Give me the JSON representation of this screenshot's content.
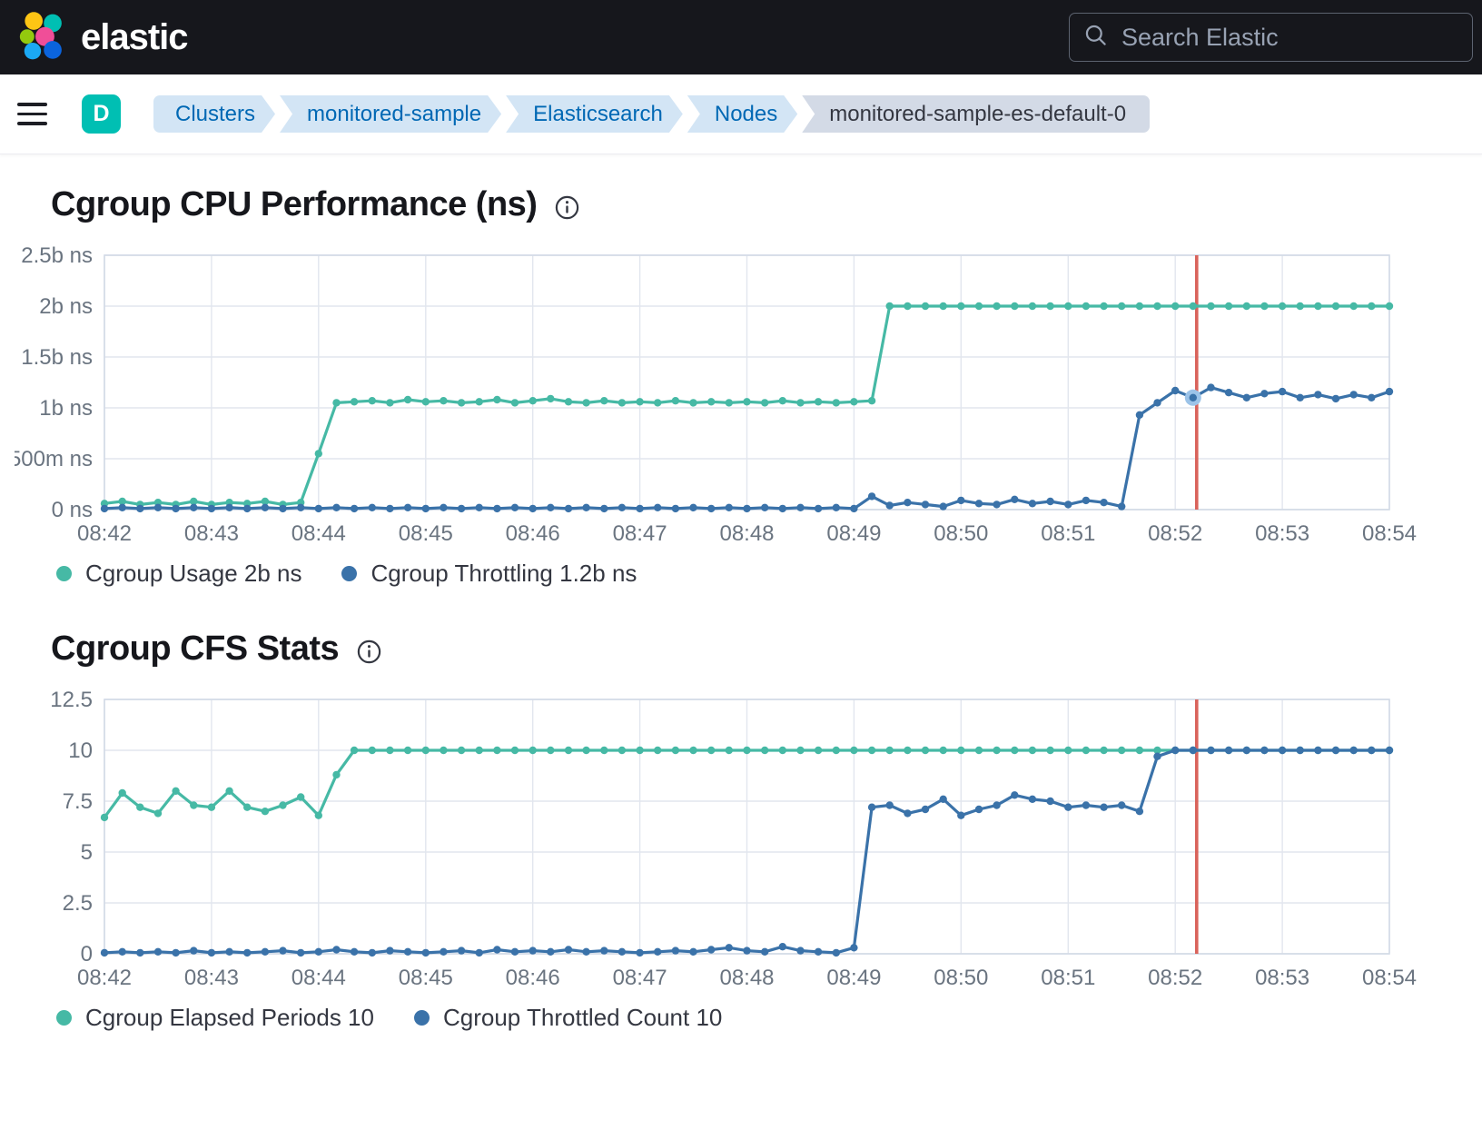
{
  "header": {
    "brand": "elastic",
    "search_placeholder": "Search Elastic"
  },
  "nav": {
    "deployment_letter": "D",
    "breadcrumbs": [
      {
        "label": "Clusters"
      },
      {
        "label": "monitored-sample"
      },
      {
        "label": "Elasticsearch"
      },
      {
        "label": "Nodes"
      },
      {
        "label": "monitored-sample-es-default-0"
      }
    ]
  },
  "colors": {
    "grid": "#e2e6ee",
    "border": "#d3dae6",
    "axis_text": "#6a7480",
    "annotation": "#d9635b",
    "teal": "#46b9a5",
    "blue": "#3a72a9"
  },
  "chart_data": [
    {
      "type": "line",
      "title": "Cgroup CPU Performance (ns)",
      "ylim": [
        0,
        2.5
      ],
      "x_max_seconds": 720,
      "x_tick_labels": [
        "08:42",
        "08:43",
        "08:44",
        "08:45",
        "08:46",
        "08:47",
        "08:48",
        "08:49",
        "08:50",
        "08:51",
        "08:52",
        "08:53",
        "08:54"
      ],
      "y_ticks": [
        {
          "v": 0,
          "label": "0 ns"
        },
        {
          "v": 0.5,
          "label": "500m ns"
        },
        {
          "v": 1,
          "label": "1b ns"
        },
        {
          "v": 1.5,
          "label": "1.5b ns"
        },
        {
          "v": 2,
          "label": "2b ns"
        },
        {
          "v": 2.5,
          "label": "2.5b ns"
        }
      ],
      "annotation": {
        "t": 612,
        "color": "#d9635b"
      },
      "series": [
        {
          "name": "Cgroup Usage",
          "legend_label": "Cgroup Usage 2b ns",
          "color": "#46b9a5",
          "t0": 0,
          "dt": 10,
          "values": [
            0.06,
            0.08,
            0.05,
            0.07,
            0.05,
            0.08,
            0.05,
            0.07,
            0.06,
            0.08,
            0.05,
            0.07,
            0.55,
            1.05,
            1.06,
            1.07,
            1.05,
            1.08,
            1.06,
            1.07,
            1.05,
            1.06,
            1.08,
            1.05,
            1.07,
            1.09,
            1.06,
            1.05,
            1.07,
            1.05,
            1.06,
            1.05,
            1.07,
            1.05,
            1.06,
            1.05,
            1.06,
            1.05,
            1.07,
            1.05,
            1.06,
            1.05,
            1.06,
            1.07,
            2,
            2,
            2,
            2,
            2,
            2,
            2,
            2,
            2,
            2,
            2,
            2,
            2,
            2,
            2,
            2,
            2,
            2,
            2,
            2,
            2,
            2,
            2,
            2,
            2,
            2,
            2,
            2,
            2
          ]
        },
        {
          "name": "Cgroup Throttling",
          "legend_label": "Cgroup Throttling 1.2b ns",
          "color": "#3a72a9",
          "t0": 0,
          "dt": 10,
          "halo_t": 610,
          "halo_color": "#9cc3e8",
          "values": [
            0.01,
            0.02,
            0.01,
            0.02,
            0.01,
            0.02,
            0.01,
            0.02,
            0.01,
            0.02,
            0.01,
            0.02,
            0.01,
            0.02,
            0.01,
            0.02,
            0.01,
            0.02,
            0.01,
            0.02,
            0.01,
            0.02,
            0.01,
            0.02,
            0.01,
            0.02,
            0.01,
            0.02,
            0.01,
            0.02,
            0.01,
            0.02,
            0.01,
            0.02,
            0.01,
            0.02,
            0.01,
            0.02,
            0.01,
            0.02,
            0.01,
            0.02,
            0.01,
            0.13,
            0.04,
            0.07,
            0.05,
            0.03,
            0.09,
            0.06,
            0.05,
            0.1,
            0.06,
            0.08,
            0.05,
            0.09,
            0.07,
            0.03,
            0.93,
            1.05,
            1.17,
            1.1,
            1.2,
            1.15,
            1.1,
            1.14,
            1.16,
            1.1,
            1.13,
            1.09,
            1.13,
            1.1,
            1.16
          ]
        }
      ]
    },
    {
      "type": "line",
      "title": "Cgroup CFS Stats",
      "ylim": [
        0,
        12.5
      ],
      "x_max_seconds": 720,
      "x_tick_labels": [
        "08:42",
        "08:43",
        "08:44",
        "08:45",
        "08:46",
        "08:47",
        "08:48",
        "08:49",
        "08:50",
        "08:51",
        "08:52",
        "08:53",
        "08:54"
      ],
      "y_ticks": [
        {
          "v": 0,
          "label": "0"
        },
        {
          "v": 2.5,
          "label": "2.5"
        },
        {
          "v": 5,
          "label": "5"
        },
        {
          "v": 7.5,
          "label": "7.5"
        },
        {
          "v": 10,
          "label": "10"
        },
        {
          "v": 12.5,
          "label": "12.5"
        }
      ],
      "annotation": {
        "t": 612,
        "color": "#d9635b"
      },
      "series": [
        {
          "name": "Cgroup Elapsed Periods",
          "legend_label": "Cgroup Elapsed Periods 10",
          "color": "#46b9a5",
          "t0": 0,
          "dt": 10,
          "values": [
            6.7,
            7.9,
            7.2,
            6.9,
            8,
            7.3,
            7.2,
            8,
            7.2,
            7,
            7.3,
            7.7,
            6.8,
            8.8,
            10,
            10,
            10,
            10,
            10,
            10,
            10,
            10,
            10,
            10,
            10,
            10,
            10,
            10,
            10,
            10,
            10,
            10,
            10,
            10,
            10,
            10,
            10,
            10,
            10,
            10,
            10,
            10,
            10,
            10,
            10,
            10,
            10,
            10,
            10,
            10,
            10,
            10,
            10,
            10,
            10,
            10,
            10,
            10,
            10,
            10,
            10,
            10,
            10,
            10,
            10,
            10,
            10,
            10,
            10,
            10,
            10,
            10,
            10
          ]
        },
        {
          "name": "Cgroup Throttled Count",
          "legend_label": "Cgroup Throttled Count 10",
          "color": "#3a72a9",
          "t0": 0,
          "dt": 10,
          "values": [
            0.05,
            0.1,
            0.05,
            0.1,
            0.05,
            0.15,
            0.05,
            0.1,
            0.05,
            0.1,
            0.15,
            0.05,
            0.1,
            0.2,
            0.1,
            0.05,
            0.15,
            0.1,
            0.05,
            0.1,
            0.15,
            0.05,
            0.2,
            0.1,
            0.15,
            0.1,
            0.2,
            0.1,
            0.15,
            0.1,
            0.05,
            0.1,
            0.15,
            0.1,
            0.2,
            0.3,
            0.15,
            0.1,
            0.35,
            0.15,
            0.1,
            0.05,
            0.3,
            7.2,
            7.3,
            6.9,
            7.1,
            7.6,
            6.8,
            7.1,
            7.3,
            7.8,
            7.6,
            7.5,
            7.2,
            7.3,
            7.2,
            7.3,
            7,
            9.7,
            10,
            10,
            10,
            10,
            10,
            10,
            10,
            10,
            10,
            10,
            10,
            10,
            10
          ]
        }
      ]
    }
  ]
}
